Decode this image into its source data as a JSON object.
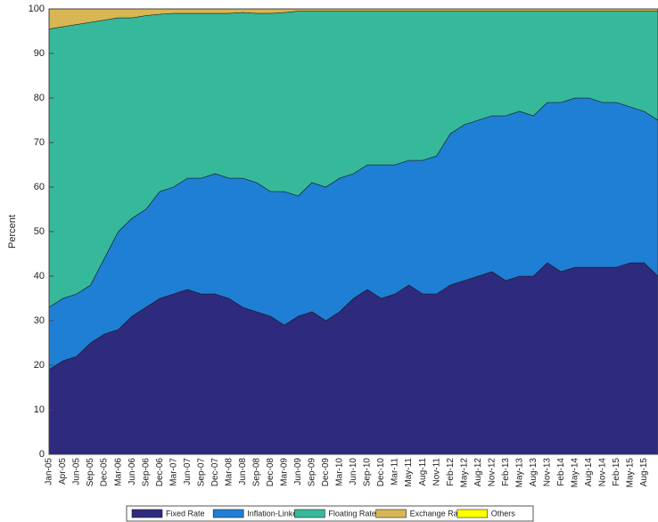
{
  "chart_data": {
    "type": "stacked_area",
    "y_label": "Percent",
    "categories": [
      "Jan-05",
      "Apr-05",
      "Jun-05",
      "Sep-05",
      "Dec-05",
      "Mar-06",
      "Jun-06",
      "Sep-06",
      "Dec-06",
      "Mar-07",
      "Jun-07",
      "Sep-07",
      "Dec-07",
      "Mar-08",
      "Jun-08",
      "Sep-08",
      "Dec-08",
      "Mar-09",
      "Jun-09",
      "Sep-09",
      "Dec-09",
      "Mar-10",
      "Jun-10",
      "Sep-10",
      "Dec-10",
      "Mar-11",
      "May-11",
      "Aug-11",
      "Nov-11",
      "Feb-12",
      "May-12",
      "Aug-12",
      "Nov-12",
      "Feb-13",
      "May-13",
      "Aug-13",
      "Nov-13",
      "Feb-14",
      "May-14",
      "Aug-14",
      "Nov-14",
      "Feb-15",
      "May-15",
      "Aug-15",
      null
    ],
    "series": [
      {
        "name": "Fixed Rate",
        "color": "#2e2a7e",
        "values": [
          19,
          21,
          22,
          25,
          27,
          28,
          31,
          33,
          35,
          36,
          37,
          36,
          36,
          35,
          33,
          32,
          31,
          29,
          31,
          32,
          30,
          32,
          35,
          37,
          35,
          36,
          38,
          36,
          36,
          38,
          39,
          40,
          41,
          39,
          40,
          40,
          43,
          41,
          42,
          42,
          42,
          42,
          43,
          43,
          40
        ]
      },
      {
        "name": "Inflation-Linked",
        "color": "#1f7fd4",
        "values": [
          14,
          14,
          14,
          13,
          17,
          22,
          22,
          22,
          24,
          24,
          25,
          26,
          27,
          27,
          29,
          29,
          28,
          30,
          27,
          29,
          30,
          30,
          28,
          28,
          30,
          29,
          28,
          30,
          31,
          34,
          35,
          35,
          35,
          37,
          37,
          36,
          36,
          38,
          38,
          38,
          37,
          37,
          35,
          34,
          35
        ]
      },
      {
        "name": "Floating Rate",
        "color": "#36b99a",
        "values": [
          62.5,
          61,
          60.5,
          59,
          53.5,
          48,
          45,
          43.5,
          39.8,
          39,
          37,
          37,
          36,
          37,
          37.2,
          38,
          40,
          40.2,
          41.5,
          38.5,
          39.5,
          37.5,
          36.5,
          34.5,
          34.5,
          34.5,
          33.5,
          33.5,
          32.5,
          27.5,
          25.5,
          24.5,
          23.5,
          23.5,
          22.5,
          23.5,
          20.5,
          20.5,
          19.5,
          19.5,
          20.5,
          20.5,
          21.5,
          22.5,
          24.5
        ]
      },
      {
        "name": "Exchange Rate",
        "color": "#d8b654",
        "values": [
          4.5,
          4,
          3.5,
          3,
          2.5,
          2,
          2,
          1.5,
          1.2,
          1,
          1,
          1,
          1,
          1,
          0.8,
          1,
          1,
          0.8,
          0.5,
          0.5,
          0.5,
          0.5,
          0.5,
          0.5,
          0.5,
          0.5,
          0.5,
          0.5,
          0.5,
          0.5,
          0.5,
          0.5,
          0.5,
          0.5,
          0.5,
          0.5,
          0.5,
          0.5,
          0.5,
          0.5,
          0.5,
          0.5,
          0.5,
          0.5,
          0.5
        ]
      },
      {
        "name": "Others",
        "color": "#ffff00",
        "values": [
          0,
          0,
          0,
          0,
          0,
          0,
          0,
          0,
          0,
          0,
          0,
          0,
          0,
          0,
          0,
          0,
          0,
          0,
          0,
          0,
          0,
          0,
          0,
          0,
          0,
          0,
          0,
          0,
          0,
          0,
          0,
          0,
          0,
          0,
          0,
          0,
          0,
          0,
          0,
          0,
          0,
          0,
          0,
          0,
          0
        ]
      }
    ],
    "ylim": [
      0,
      100
    ],
    "yticks": [
      0,
      10,
      20,
      30,
      40,
      50,
      60,
      70,
      80,
      90,
      100
    ]
  }
}
